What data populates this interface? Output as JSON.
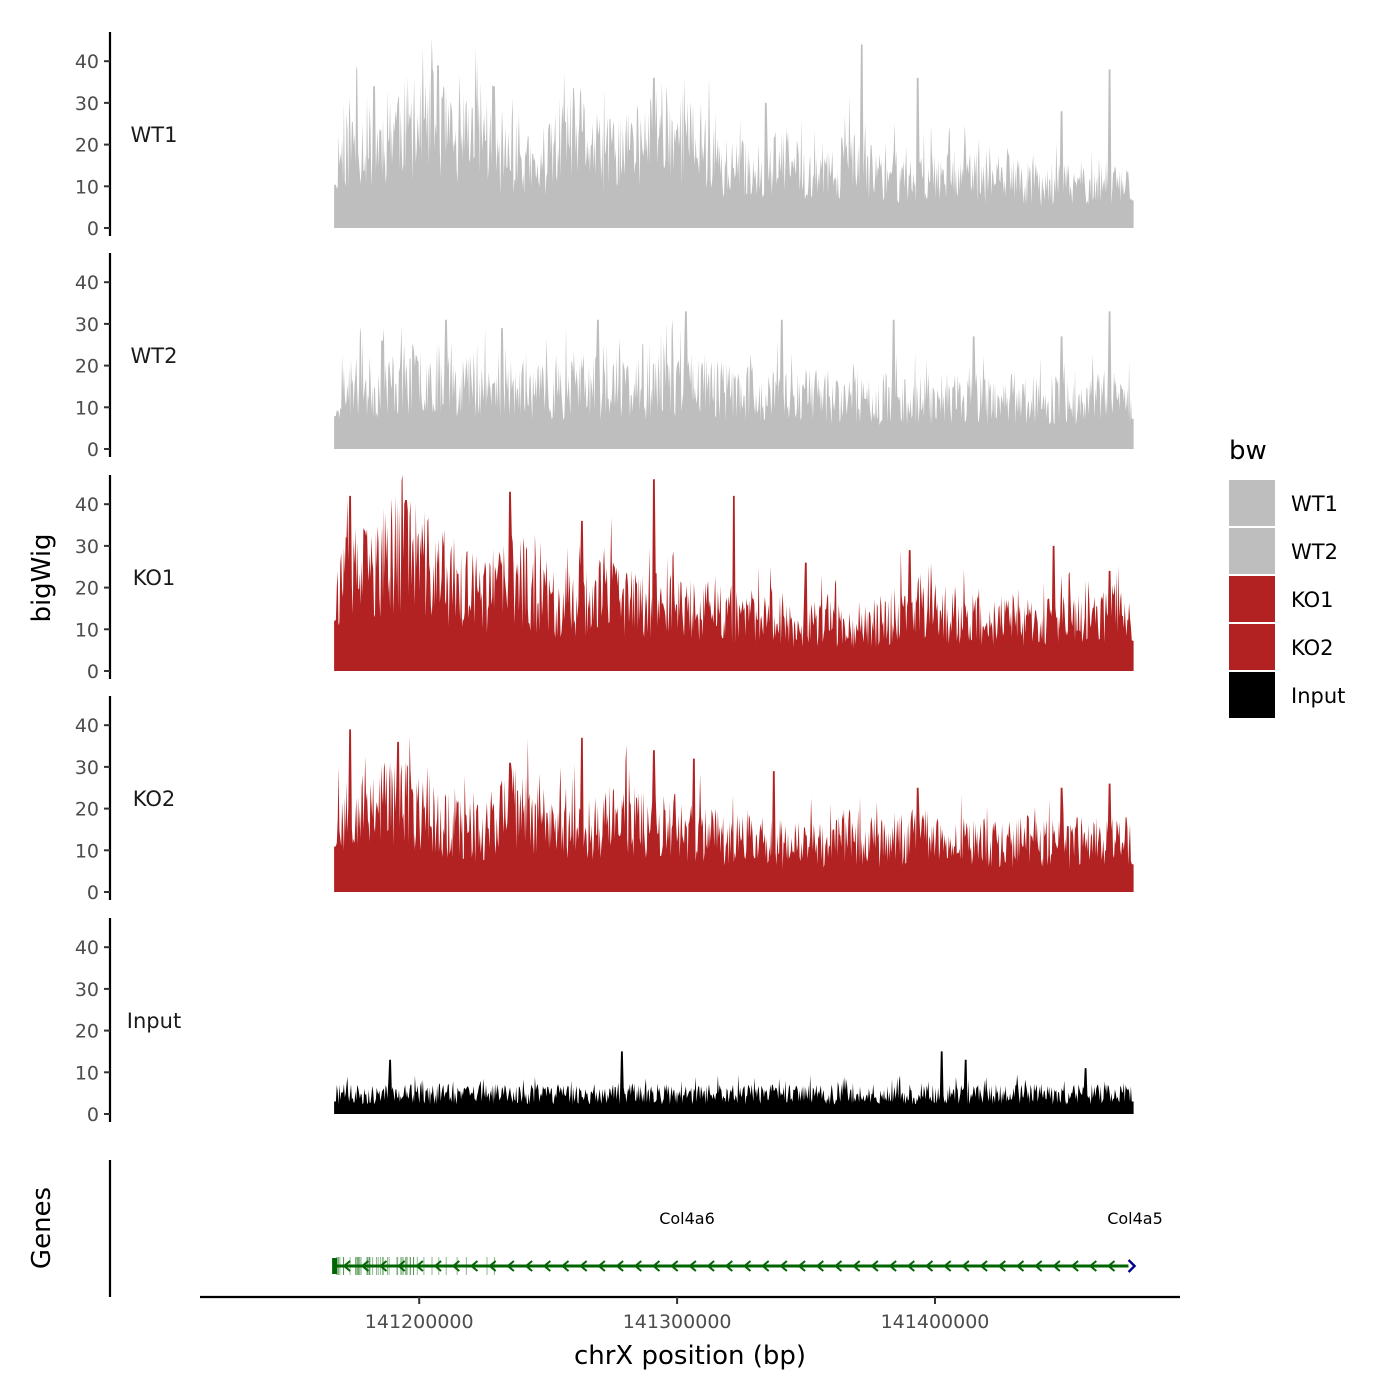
{
  "chart_data": {
    "type": "area",
    "subtype": "genome-browser-tracks",
    "xlabel": "chrX position (bp)",
    "ylabel": "bigWig",
    "x_range": [
      141167000,
      141477000
    ],
    "xlim": [
      141115000,
      141495000
    ],
    "x_ticks": [
      141200000,
      141300000,
      141400000
    ],
    "x_tick_labels": [
      "141200000",
      "141300000",
      "141400000"
    ],
    "ylim": [
      0,
      47
    ],
    "y_ticks": [
      0,
      10,
      20,
      30,
      40
    ],
    "y_tick_labels": [
      "0",
      "10",
      "20",
      "30",
      "40"
    ],
    "tracks": [
      {
        "name": "WT1",
        "color": "#bebebe",
        "seed": 11,
        "profile": [
          17,
          22,
          20,
          27,
          24,
          27,
          19,
          28,
          17,
          18,
          13,
          22,
          24,
          18,
          20,
          20,
          27,
          22,
          21,
          15,
          15,
          14,
          17,
          14,
          12,
          17,
          14,
          14,
          12,
          13,
          16,
          13,
          12,
          12,
          11,
          12,
          11,
          12,
          12,
          11
        ],
        "peaks": [
          [
            0.05,
            34
          ],
          [
            0.13,
            39
          ],
          [
            0.2,
            34
          ],
          [
            0.4,
            36
          ],
          [
            0.54,
            30
          ],
          [
            0.66,
            44
          ],
          [
            0.73,
            36
          ],
          [
            0.91,
            28
          ],
          [
            0.97,
            38
          ]
        ]
      },
      {
        "name": "WT2",
        "color": "#bebebe",
        "seed": 23,
        "profile": [
          13,
          16,
          15,
          17,
          18,
          18,
          17,
          17,
          14,
          15,
          14,
          15,
          17,
          15,
          16,
          15,
          16,
          17,
          17,
          15,
          14,
          13,
          14,
          14,
          13,
          13,
          12,
          13,
          13,
          12,
          13,
          13,
          12,
          13,
          13,
          12,
          12,
          13,
          13,
          12
        ],
        "peaks": [
          [
            0.06,
            26
          ],
          [
            0.14,
            31
          ],
          [
            0.21,
            29
          ],
          [
            0.33,
            31
          ],
          [
            0.44,
            33
          ],
          [
            0.56,
            31
          ],
          [
            0.7,
            31
          ],
          [
            0.8,
            27
          ],
          [
            0.91,
            27
          ],
          [
            0.97,
            33
          ]
        ]
      },
      {
        "name": "KO1",
        "color": "#b22222",
        "seed": 37,
        "profile": [
          20,
          24,
          25,
          30,
          29,
          24,
          22,
          19,
          21,
          24,
          18,
          17,
          16,
          21,
          18,
          17,
          18,
          16,
          15,
          15,
          13,
          15,
          13,
          11,
          13,
          12,
          12,
          13,
          17,
          16,
          14,
          13,
          12,
          13,
          12,
          12,
          13,
          14,
          15,
          12
        ],
        "peaks": [
          [
            0.02,
            42
          ],
          [
            0.09,
            41
          ],
          [
            0.22,
            43
          ],
          [
            0.31,
            36
          ],
          [
            0.4,
            46
          ],
          [
            0.5,
            42
          ],
          [
            0.59,
            26
          ],
          [
            0.72,
            29
          ],
          [
            0.9,
            30
          ],
          [
            0.97,
            24
          ]
        ]
      },
      {
        "name": "KO2",
        "color": "#b22222",
        "seed": 53,
        "profile": [
          18,
          22,
          23,
          24,
          20,
          18,
          16,
          15,
          20,
          21,
          19,
          17,
          16,
          17,
          19,
          18,
          17,
          16,
          15,
          14,
          14,
          13,
          12,
          12,
          13,
          14,
          13,
          12,
          14,
          13,
          12,
          13,
          12,
          12,
          13,
          12,
          12,
          14,
          13,
          11
        ],
        "peaks": [
          [
            0.02,
            39
          ],
          [
            0.08,
            36
          ],
          [
            0.22,
            31
          ],
          [
            0.31,
            37
          ],
          [
            0.4,
            34
          ],
          [
            0.45,
            32
          ],
          [
            0.55,
            29
          ],
          [
            0.73,
            25
          ],
          [
            0.91,
            25
          ],
          [
            0.97,
            26
          ]
        ]
      },
      {
        "name": "Input",
        "color": "#000000",
        "seed": 71,
        "profile": [
          5,
          5,
          5,
          5,
          5,
          5,
          5,
          5,
          5,
          5,
          5,
          5,
          5,
          5,
          5,
          5,
          5,
          5,
          5,
          5,
          5,
          5,
          5,
          5,
          5,
          5,
          5,
          5,
          5,
          5,
          5,
          5,
          5,
          5,
          5,
          5,
          5,
          5,
          5,
          5
        ],
        "peaks": [
          [
            0.07,
            13
          ],
          [
            0.36,
            15
          ],
          [
            0.76,
            15
          ],
          [
            0.79,
            13
          ],
          [
            0.94,
            11
          ]
        ]
      }
    ],
    "genes_track_title": "Genes",
    "genes": [
      {
        "name": "Col4a6",
        "start": 141167000,
        "end": 141475000,
        "strand": "-",
        "color": "#006400"
      },
      {
        "name": "Col4a5",
        "start": 141475000,
        "end": 141477000,
        "strand": "+",
        "color": "#00008b"
      }
    ],
    "legend": {
      "title": "bw",
      "position": "right",
      "entries": [
        {
          "label": "WT1",
          "color": "#bebebe"
        },
        {
          "label": "WT2",
          "color": "#bebebe"
        },
        {
          "label": "KO1",
          "color": "#b22222"
        },
        {
          "label": "KO2",
          "color": "#b22222"
        },
        {
          "label": "Input",
          "color": "#000000"
        }
      ]
    }
  }
}
